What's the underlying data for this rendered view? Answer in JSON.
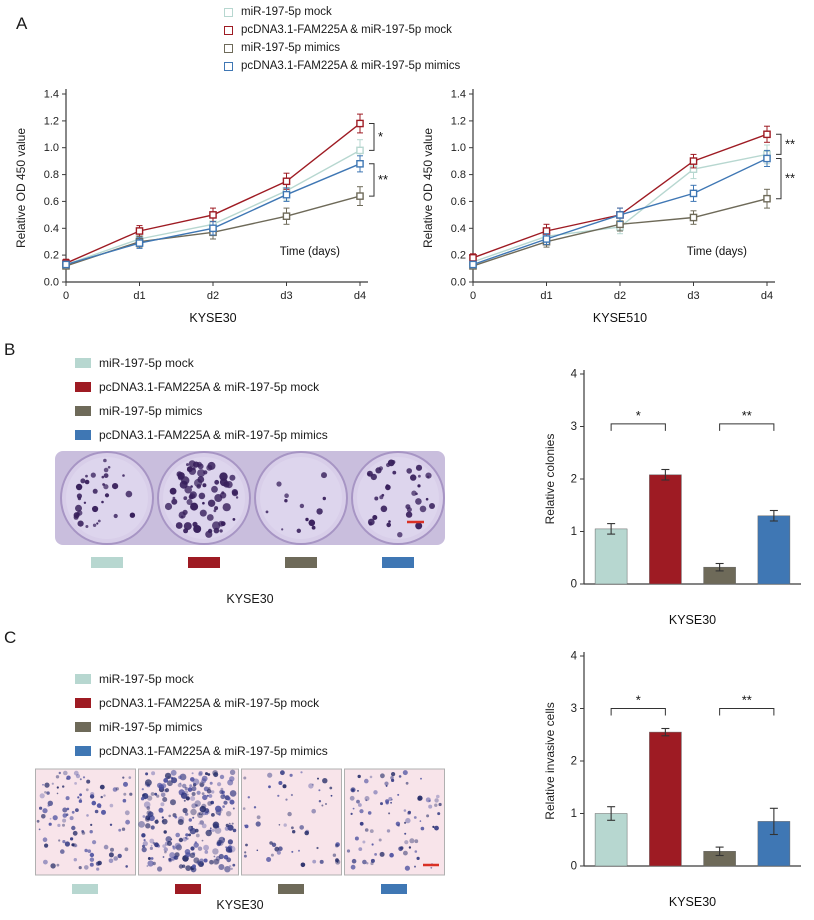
{
  "figure": {
    "panel_a_label": "A",
    "panel_b_label": "B",
    "panel_c_label": "C"
  },
  "colors": {
    "mock": "#b7d7d0",
    "fam_mock": "#9e1b23",
    "mimics": "#6e6a59",
    "fam_mimics": "#3f77b4",
    "scale_bar": "#d93025",
    "axis": "#3a3a3a",
    "plate": "#c9bedd",
    "well": "#d8cee9",
    "colony": "#38205c",
    "invasion_bg": "#f8e4ea"
  },
  "groups": [
    {
      "id": "mock",
      "label": "miR-197-5p mock",
      "color": "mock"
    },
    {
      "id": "fam-mock",
      "label": "pcDNA3.1-FAM225A & miR-197-5p mock",
      "color": "fam_mock"
    },
    {
      "id": "mimics",
      "label": "miR-197-5p mimics",
      "color": "mimics"
    },
    {
      "id": "fam-mimics",
      "label": "pcDNA3.1-FAM225A & miR-197-5p mimics",
      "color": "fam_mimics"
    }
  ],
  "chart_data": [
    {
      "id": "proliferation-kyse30",
      "type": "line",
      "title": "KYSE30",
      "ylabel": "Relative OD 450 value",
      "xlabel": "Time (days)",
      "x": [
        "0",
        "d1",
        "d2",
        "d3",
        "d4"
      ],
      "ylim": [
        0,
        1.4
      ],
      "yticks": [
        0,
        0.2,
        0.4,
        0.6,
        0.8,
        1.0,
        1.2,
        1.4
      ],
      "series": [
        {
          "name": "miR-197-5p mock",
          "color": "mock",
          "values": [
            0.13,
            0.32,
            0.43,
            0.68,
            0.98
          ],
          "errors": [
            0.03,
            0.05,
            0.06,
            0.07,
            0.08
          ]
        },
        {
          "name": "pcDNA3.1-FAM225A & miR-197-5p mock",
          "color": "fam_mock",
          "values": [
            0.14,
            0.38,
            0.5,
            0.75,
            1.18
          ],
          "errors": [
            0.03,
            0.04,
            0.05,
            0.06,
            0.07
          ]
        },
        {
          "name": "miR-197-5p mimics",
          "color": "mimics",
          "values": [
            0.12,
            0.3,
            0.37,
            0.49,
            0.64
          ],
          "errors": [
            0.02,
            0.04,
            0.05,
            0.06,
            0.07
          ]
        },
        {
          "name": "pcDNA3.1-FAM225A & miR-197-5p mimics",
          "color": "fam_mimics",
          "values": [
            0.13,
            0.29,
            0.4,
            0.65,
            0.88
          ],
          "errors": [
            0.02,
            0.04,
            0.05,
            0.05,
            0.06
          ]
        }
      ],
      "significance": [
        {
          "label": "*",
          "series": [
            1,
            0
          ]
        },
        {
          "label": "**",
          "series": [
            3,
            2
          ]
        }
      ]
    },
    {
      "id": "proliferation-kyse510",
      "type": "line",
      "title": "KYSE510",
      "ylabel": "Relative OD 450 value",
      "xlabel": "Time (days)",
      "x": [
        "0",
        "d1",
        "d2",
        "d3",
        "d4"
      ],
      "ylim": [
        0,
        1.4
      ],
      "yticks": [
        0,
        0.2,
        0.4,
        0.6,
        0.8,
        1.0,
        1.2,
        1.4
      ],
      "series": [
        {
          "name": "miR-197-5p mock",
          "color": "mock",
          "values": [
            0.15,
            0.34,
            0.41,
            0.84,
            0.95
          ],
          "errors": [
            0.03,
            0.05,
            0.05,
            0.07,
            0.07
          ]
        },
        {
          "name": "pcDNA3.1-FAM225A & miR-197-5p mock",
          "color": "fam_mock",
          "values": [
            0.18,
            0.38,
            0.5,
            0.9,
            1.1
          ],
          "errors": [
            0.03,
            0.05,
            0.05,
            0.05,
            0.06
          ]
        },
        {
          "name": "miR-197-5p mimics",
          "color": "mimics",
          "values": [
            0.12,
            0.3,
            0.43,
            0.48,
            0.62
          ],
          "errors": [
            0.02,
            0.04,
            0.05,
            0.05,
            0.07
          ]
        },
        {
          "name": "pcDNA3.1-FAM225A & miR-197-5p mimics",
          "color": "fam_mimics",
          "values": [
            0.13,
            0.32,
            0.5,
            0.66,
            0.92
          ],
          "errors": [
            0.02,
            0.04,
            0.05,
            0.06,
            0.06
          ]
        }
      ],
      "significance": [
        {
          "label": "**",
          "series": [
            1,
            0
          ]
        },
        {
          "label": "**",
          "series": [
            3,
            2
          ]
        }
      ]
    },
    {
      "id": "colonies-kyse30",
      "type": "bar",
      "title": "KYSE30",
      "ylabel": "Relative colonies",
      "categories": [
        "miR-197-5p mock",
        "pcDNA3.1-FAM225A & miR-197-5p mock",
        "miR-197-5p mimics",
        "pcDNA3.1-FAM225A & miR-197-5p mimics"
      ],
      "values": [
        1.05,
        2.08,
        0.32,
        1.3
      ],
      "errors": [
        0.1,
        0.1,
        0.07,
        0.1
      ],
      "bar_colors": [
        "mock",
        "fam_mock",
        "mimics",
        "fam_mimics"
      ],
      "ylim": [
        0,
        4
      ],
      "yticks": [
        0,
        1,
        2,
        3,
        4
      ],
      "significance": [
        {
          "label": "*",
          "bars": [
            0,
            1
          ],
          "y": 3.05
        },
        {
          "label": "**",
          "bars": [
            2,
            3
          ],
          "y": 3.05
        }
      ]
    },
    {
      "id": "invasion-kyse30",
      "type": "bar",
      "title": "KYSE30",
      "ylabel": "Relative invasive cells",
      "categories": [
        "miR-197-5p mock",
        "pcDNA3.1-FAM225A & miR-197-5p mock",
        "miR-197-5p mimics",
        "pcDNA3.1-FAM225A & miR-197-5p mimics"
      ],
      "values": [
        1.0,
        2.55,
        0.28,
        0.85
      ],
      "errors": [
        0.13,
        0.07,
        0.08,
        0.25
      ],
      "bar_colors": [
        "mock",
        "fam_mock",
        "mimics",
        "fam_mimics"
      ],
      "ylim": [
        0,
        4
      ],
      "yticks": [
        0,
        1,
        2,
        3,
        4
      ],
      "significance": [
        {
          "label": "*",
          "bars": [
            0,
            1
          ],
          "y": 3.0
        },
        {
          "label": "**",
          "bars": [
            2,
            3
          ],
          "y": 3.0
        }
      ]
    }
  ],
  "images": {
    "colony_assay": {
      "caption": "KYSE30",
      "well_colony_counts": [
        34,
        72,
        13,
        38
      ],
      "scale_bar": true
    },
    "invasion_assay": {
      "caption": "KYSE30",
      "cell_counts": [
        110,
        260,
        60,
        90
      ],
      "scale_bar": true
    }
  }
}
